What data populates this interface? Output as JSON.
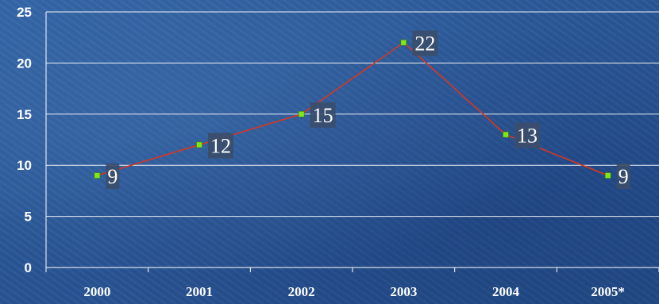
{
  "chart_data": {
    "type": "line",
    "categories": [
      "2000",
      "2001",
      "2002",
      "2003",
      "2004",
      "2005*"
    ],
    "series": [
      {
        "values": [
          9,
          12,
          15,
          22,
          13,
          9
        ]
      }
    ],
    "data_labels": [
      "9",
      "12",
      "15",
      "22",
      "13",
      "9"
    ],
    "y_ticks": [
      "0",
      "5",
      "10",
      "15",
      "20",
      "25"
    ],
    "ylim": [
      0,
      25
    ],
    "grid": true,
    "line_color": "#d9361f",
    "marker_color": "#7fe81a",
    "gridline_color": "#ffffff",
    "label_box_color": "#3b4e6b"
  }
}
